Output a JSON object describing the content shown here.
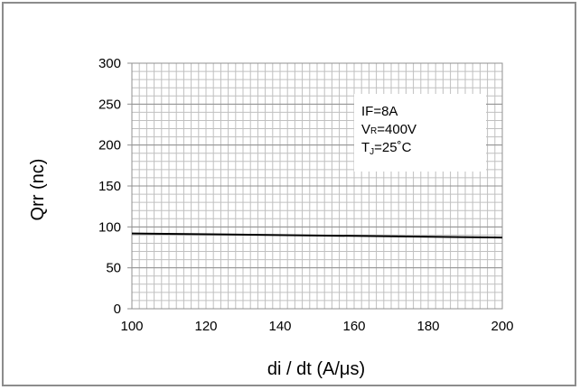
{
  "chart_data": {
    "type": "line",
    "xlabel": "di / dt (A/μs)",
    "ylabel": "Qrr  (nc)",
    "xlim": [
      100,
      200
    ],
    "ylim": [
      0,
      300
    ],
    "x_ticks": [
      "100",
      "120",
      "140",
      "160",
      "180",
      "200"
    ],
    "y_ticks": [
      "0",
      "50",
      "100",
      "150",
      "200",
      "250",
      "300"
    ],
    "grid": true,
    "series": [
      {
        "x": [
          100,
          200
        ],
        "values": [
          92,
          87
        ],
        "color": "#000000"
      }
    ],
    "conditions": {
      "line1": "IF=8A",
      "line2_main": "V",
      "line2_sub": "R",
      "line2_rest": "=400V",
      "line3_main": "T",
      "line3_sub": "J",
      "line3_rest": "=25˚C",
      "placement": "top-right"
    }
  }
}
